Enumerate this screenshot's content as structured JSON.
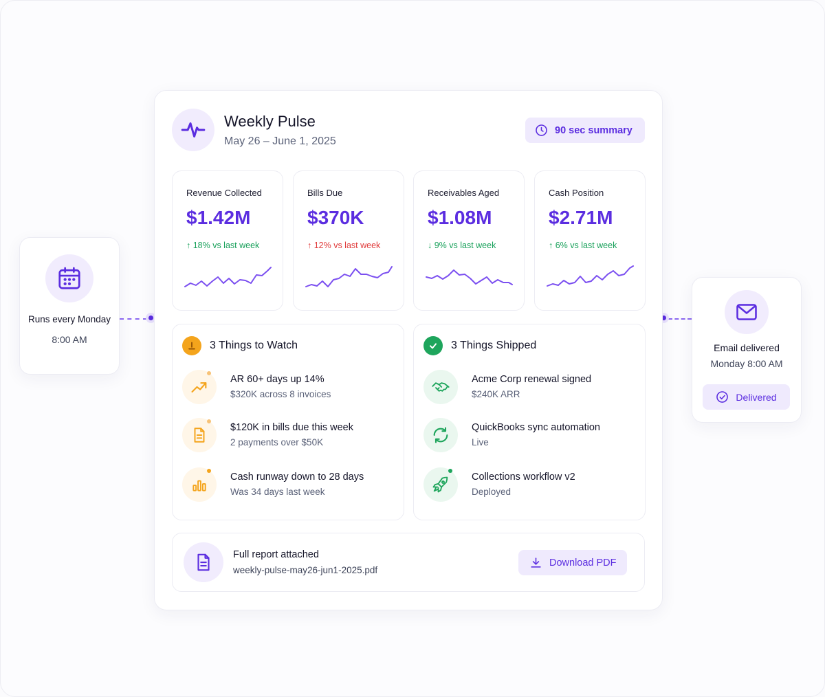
{
  "header": {
    "title": "Weekly Pulse",
    "date_range": "May 26 – June 1, 2025",
    "summary_label": "90 sec summary"
  },
  "metrics": [
    {
      "label": "Revenue Collected",
      "value": "$1.42M",
      "change": "↑ 18% vs last week",
      "change_color": "#18a05a"
    },
    {
      "label": "Bills Due",
      "value": "$370K",
      "change": "↑ 12% vs last week",
      "change_color": "#e03a3a"
    },
    {
      "label": "Receivables Aged",
      "value": "$1.08M",
      "change": "↓ 9% vs last week",
      "change_color": "#18a05a"
    },
    {
      "label": "Cash Position",
      "value": "$2.71M",
      "change": "↑ 6% vs last week",
      "change_color": "#18a05a"
    }
  ],
  "watch": {
    "title": "3 Things to Watch",
    "items": [
      {
        "title": "AR 60+ days up 14%",
        "detail": "$320K across 8 invoices",
        "icon": "trend-up-icon"
      },
      {
        "title": "$120K in bills due this week",
        "detail": "2 payments over $50K",
        "icon": "document-icon"
      },
      {
        "title": "Cash runway down to 28 days",
        "detail": "Was 34 days last week",
        "icon": "bar-chart-icon"
      }
    ]
  },
  "shipped": {
    "title": "3 Things Shipped",
    "items": [
      {
        "title": "Acme Corp renewal signed",
        "detail": "$240K ARR",
        "icon": "handshake-icon"
      },
      {
        "title": "QuickBooks sync automation",
        "detail": "Live",
        "icon": "sync-icon"
      },
      {
        "title": "Collections workflow v2",
        "detail": "Deployed",
        "icon": "rocket-icon"
      }
    ]
  },
  "report": {
    "title": "Full report attached",
    "filename": "weekly-pulse-may26-jun1-2025.pdf",
    "download_label": "Download PDF"
  },
  "schedule": {
    "label": "Runs every Monday",
    "time": "8:00 AM"
  },
  "delivery": {
    "label": "Email delivered",
    "time": "Monday 8:00 AM",
    "status": "Delivered"
  },
  "colors": {
    "accent": "#5b2de0",
    "accent_soft": "#efeafd",
    "positive": "#18a05a",
    "negative": "#e03a3a",
    "warning": "#f4a41c"
  }
}
